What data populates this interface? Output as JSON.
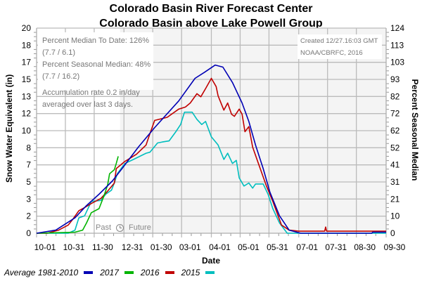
{
  "title_line1": "Colorado Basin River Forecast Center",
  "title_line2": "Colorado Basin above Lake Powell Group",
  "info": {
    "percent_median_to_date": "Percent Median To Date: 126% (7.7 / 6.1)",
    "percent_seasonal_median": "Percent Seasonal Median: 48% (7.7 / 16.2)",
    "accumulation_line1": "Accumulation rate 0.2 in/day",
    "accumulation_line2": "averaged over last 3 days."
  },
  "created": {
    "line1": "Created 12/27.16:03 GMT",
    "line2": "NOAA/CBRFC, 2016"
  },
  "past_label": "Past",
  "future_label": "Future",
  "clock_icon": "clock-icon",
  "legend": [
    {
      "label": "Average 1981-2010",
      "color": "#0000b4"
    },
    {
      "label": "2017",
      "color": "#00b400"
    },
    {
      "label": "2016",
      "color": "#c00000"
    },
    {
      "label": "2015",
      "color": "#00bebe"
    }
  ],
  "chart_data": {
    "type": "line",
    "xlabel": "Date",
    "ylabel": "Snow Water Equivalent (in)",
    "y2label": "Percent Seasonal Median",
    "ylim": [
      0,
      20
    ],
    "y2lim": [
      0,
      124
    ],
    "y_ticks": [
      "0",
      "2",
      "3",
      "5",
      "7",
      "8",
      "10",
      "12",
      "13",
      "15",
      "17",
      "18",
      "20"
    ],
    "y2_ticks": [
      "0",
      "10",
      "21",
      "31",
      "41",
      "52",
      "62",
      "72",
      "82",
      "93",
      "103",
      "113",
      "124"
    ],
    "x_ticks": [
      "10-01",
      "10-31",
      "11-30",
      "12-31",
      "01-30",
      "03-01",
      "04-01",
      "05-01",
      "05-31",
      "07-01",
      "07-31",
      "08-30",
      "09-30"
    ],
    "grid": true,
    "legend_position": "bottom",
    "past_future_divider": "12-27",
    "series": [
      {
        "name": "Average 1981-2010",
        "color": "#0000b4",
        "points": [
          [
            "10-01",
            0
          ],
          [
            "10-21",
            0.3
          ],
          [
            "11-10",
            1.5
          ],
          [
            "11-22",
            2.7
          ],
          [
            "12-05",
            3.8
          ],
          [
            "12-19",
            5.1
          ],
          [
            "12-29",
            6.3
          ],
          [
            "01-15",
            8.4
          ],
          [
            "02-01",
            10.3
          ],
          [
            "02-26",
            12.9
          ],
          [
            "03-15",
            15.1
          ],
          [
            "03-25",
            15.7
          ],
          [
            "04-05",
            16.4
          ],
          [
            "04-13",
            16.2
          ],
          [
            "04-23",
            14.7
          ],
          [
            "05-03",
            12.7
          ],
          [
            "05-10",
            10.9
          ],
          [
            "05-17",
            8.6
          ],
          [
            "05-25",
            6.3
          ],
          [
            "06-01",
            4.0
          ],
          [
            "06-11",
            1.7
          ],
          [
            "06-21",
            0.3
          ],
          [
            "07-03",
            0
          ],
          [
            "09-15",
            0
          ],
          [
            "09-16",
            0.1
          ],
          [
            "09-30",
            0.1
          ]
        ]
      },
      {
        "name": "2017",
        "color": "#00b400",
        "points": [
          [
            "10-01",
            0
          ],
          [
            "11-10",
            0.1
          ],
          [
            "11-18",
            0.3
          ],
          [
            "11-22",
            1.0
          ],
          [
            "11-27",
            2.0
          ],
          [
            "12-05",
            2.4
          ],
          [
            "12-10",
            3.6
          ],
          [
            "12-14",
            4.7
          ],
          [
            "12-16",
            5.8
          ],
          [
            "12-21",
            6.2
          ],
          [
            "12-23",
            6.8
          ],
          [
            "12-25",
            7.5
          ]
        ]
      },
      {
        "name": "2016",
        "color": "#c00000",
        "points": [
          [
            "10-01",
            0
          ],
          [
            "10-12",
            0
          ],
          [
            "10-24",
            0.3
          ],
          [
            "11-03",
            0.8
          ],
          [
            "11-08",
            1.4
          ],
          [
            "11-14",
            2.2
          ],
          [
            "11-20",
            2.5
          ],
          [
            "11-27",
            2.9
          ],
          [
            "12-07",
            3.4
          ],
          [
            "12-14",
            4.1
          ],
          [
            "12-21",
            4.9
          ],
          [
            "12-23",
            6.3
          ],
          [
            "01-01",
            7.0
          ],
          [
            "01-13",
            7.7
          ],
          [
            "01-23",
            8.6
          ],
          [
            "01-27",
            9.7
          ],
          [
            "02-01",
            11.0
          ],
          [
            "02-14",
            11.3
          ],
          [
            "02-26",
            12.1
          ],
          [
            "03-05",
            12.3
          ],
          [
            "03-10",
            12.7
          ],
          [
            "03-17",
            13.6
          ],
          [
            "03-21",
            13.3
          ],
          [
            "03-26",
            14.1
          ],
          [
            "04-01",
            15.1
          ],
          [
            "04-06",
            14.3
          ],
          [
            "04-08",
            13.4
          ],
          [
            "04-14",
            12.0
          ],
          [
            "04-18",
            12.7
          ],
          [
            "04-22",
            11.6
          ],
          [
            "04-25",
            11.4
          ],
          [
            "04-30",
            12.1
          ],
          [
            "05-03",
            11.6
          ],
          [
            "05-06",
            9.9
          ],
          [
            "05-10",
            10.4
          ],
          [
            "05-14",
            8.4
          ],
          [
            "05-20",
            6.8
          ],
          [
            "05-28",
            4.7
          ],
          [
            "06-04",
            3.1
          ],
          [
            "06-13",
            0.8
          ],
          [
            "06-21",
            0.3
          ],
          [
            "07-01",
            0.2
          ],
          [
            "07-28",
            0.2
          ],
          [
            "07-29",
            0.6
          ],
          [
            "07-30",
            0.2
          ],
          [
            "09-30",
            0.2
          ]
        ]
      },
      {
        "name": "2015",
        "color": "#00bebe",
        "points": [
          [
            "10-01",
            0
          ],
          [
            "11-03",
            0
          ],
          [
            "11-10",
            0.3
          ],
          [
            "11-14",
            1.5
          ],
          [
            "11-20",
            1.7
          ],
          [
            "11-25",
            2.7
          ],
          [
            "11-27",
            3.1
          ],
          [
            "12-07",
            3.2
          ],
          [
            "12-12",
            3.8
          ],
          [
            "12-18",
            4.2
          ],
          [
            "12-21",
            4.9
          ],
          [
            "12-24",
            5.8
          ],
          [
            "01-01",
            6.8
          ],
          [
            "01-10",
            7.2
          ],
          [
            "01-23",
            7.8
          ],
          [
            "01-27",
            7.9
          ],
          [
            "02-04",
            8.8
          ],
          [
            "02-09",
            8.9
          ],
          [
            "02-16",
            9.0
          ],
          [
            "02-23",
            9.9
          ],
          [
            "02-28",
            10.6
          ],
          [
            "03-04",
            11.8
          ],
          [
            "03-12",
            11.8
          ],
          [
            "03-17",
            11.1
          ],
          [
            "03-22",
            10.6
          ],
          [
            "03-26",
            10.9
          ],
          [
            "04-01",
            9.4
          ],
          [
            "04-08",
            8.6
          ],
          [
            "04-14",
            7.2
          ],
          [
            "04-18",
            7.8
          ],
          [
            "04-23",
            6.8
          ],
          [
            "04-27",
            7.1
          ],
          [
            "04-30",
            5.4
          ],
          [
            "05-05",
            4.6
          ],
          [
            "05-10",
            4.9
          ],
          [
            "05-14",
            4.4
          ],
          [
            "05-17",
            4.8
          ],
          [
            "05-25",
            4.8
          ],
          [
            "05-30",
            3.8
          ],
          [
            "06-04",
            2.4
          ],
          [
            "06-11",
            1.0
          ],
          [
            "06-19",
            0
          ],
          [
            "09-30",
            0
          ]
        ]
      }
    ]
  }
}
